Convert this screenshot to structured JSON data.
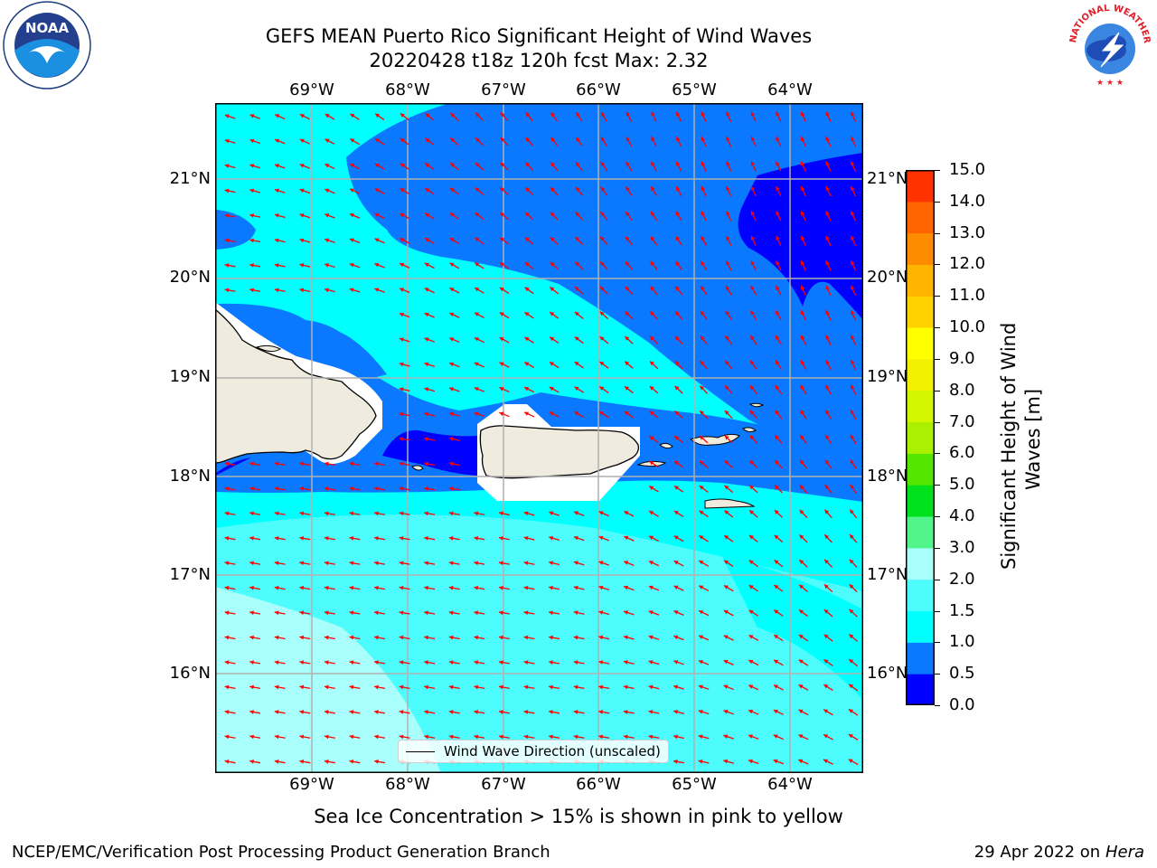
{
  "title": {
    "line1": "GEFS MEAN Puerto Rico Significant Height of Wind Waves",
    "line2": "20220428 t18z 120h fcst   Max: 2.32"
  },
  "map": {
    "lon_ticks": [
      "69°W",
      "68°W",
      "67°W",
      "66°W",
      "65°W",
      "64°W"
    ],
    "lat_ticks": [
      "21°N",
      "20°N",
      "19°N",
      "18°N",
      "17°N",
      "16°N"
    ],
    "extent": {
      "lon_min": -70.0,
      "lon_max": -63.3,
      "lat_min": 15.0,
      "lat_max": 21.75
    },
    "grid": true,
    "legend_label": "Wind Wave Direction (unscaled)",
    "arrow_color": "#ff0000",
    "land_color": "#efecdf"
  },
  "colorbar": {
    "label_line1": "Significant Height of Wind",
    "label_line2": "Waves [m]",
    "ticks": [
      "0.0",
      "0.5",
      "1.0",
      "1.5",
      "2.0",
      "3.0",
      "4.0",
      "5.0",
      "6.0",
      "7.0",
      "8.0",
      "9.0",
      "10.0",
      "11.0",
      "12.0",
      "13.0",
      "14.0",
      "15.0"
    ],
    "colors": [
      "#0000ff",
      "#0a78ff",
      "#00ffff",
      "#4dfcfc",
      "#a8fffb",
      "#52f58a",
      "#00e11e",
      "#55e600",
      "#aaf000",
      "#d2f500",
      "#f0f000",
      "#ffff00",
      "#ffd200",
      "#ffb400",
      "#ff8c00",
      "#ff6400",
      "#ff3200",
      "#ff0000"
    ]
  },
  "footer": {
    "sea_ice_note": "Sea Ice Concentration > 15% is shown in pink to yellow",
    "branch": "NCEP/EMC/Verification Post Processing Product Generation Branch",
    "date_prefix": "29 Apr 2022 on ",
    "date_host": "Hera"
  },
  "logos": {
    "noaa_text": "NOAA",
    "nws_text": "NATIONAL WEATHER SERVICE"
  }
}
